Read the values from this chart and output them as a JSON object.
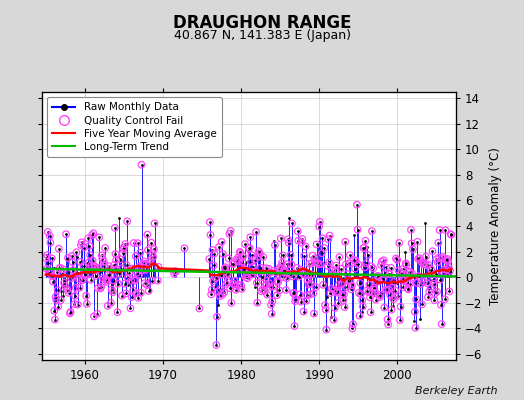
{
  "title": "DRAUGHON RANGE",
  "subtitle": "40.867 N, 141.383 E (Japan)",
  "ylabel": "Temperature Anomaly (°C)",
  "attribution": "Berkeley Earth",
  "xlim": [
    1954.5,
    2007.5
  ],
  "ylim": [
    -6.5,
    14.5
  ],
  "yticks": [
    -6,
    -4,
    -2,
    0,
    2,
    4,
    6,
    8,
    10,
    12,
    14
  ],
  "xticks": [
    1960,
    1970,
    1980,
    1990,
    2000
  ],
  "start_year": 1955,
  "end_year": 2007,
  "raw_color": "#0000ff",
  "qc_color": "#ff44ff",
  "ma_color": "#ff0000",
  "trend_color": "#00bb00",
  "dot_color": "#000000",
  "bg_color": "#ffffff",
  "grid_color": "#cccccc",
  "legend_fontsize": 7.5,
  "title_fontsize": 12,
  "subtitle_fontsize": 9,
  "fig_bg_color": "#d8d8d8"
}
